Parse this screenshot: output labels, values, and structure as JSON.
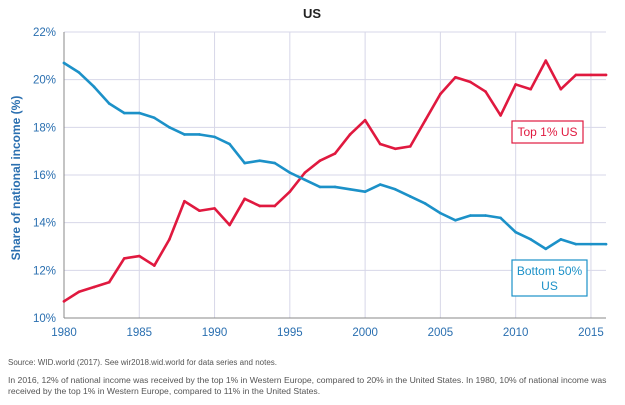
{
  "chart_data": {
    "type": "line",
    "title": "US",
    "ylabel": "Share of national income (%)",
    "xlabel": "",
    "xlim": [
      1980,
      2016
    ],
    "ylim": [
      10,
      22
    ],
    "xticks": [
      1980,
      1985,
      1990,
      1995,
      2000,
      2005,
      2010,
      2015
    ],
    "yticks": [
      10,
      12,
      14,
      16,
      18,
      20,
      22
    ],
    "ytick_labels": [
      "10%",
      "12%",
      "14%",
      "16%",
      "18%",
      "20%",
      "22%"
    ],
    "grid": true,
    "x": [
      1980,
      1981,
      1982,
      1983,
      1984,
      1985,
      1986,
      1987,
      1988,
      1989,
      1990,
      1991,
      1992,
      1993,
      1994,
      1995,
      1996,
      1997,
      1998,
      1999,
      2000,
      2001,
      2002,
      2003,
      2004,
      2005,
      2006,
      2007,
      2008,
      2009,
      2010,
      2011,
      2012,
      2013,
      2014,
      2015,
      2016
    ],
    "series": [
      {
        "name": "Top 1% US",
        "color": "#e0193f",
        "values": [
          10.7,
          11.1,
          11.3,
          11.5,
          12.5,
          12.6,
          12.2,
          13.3,
          14.9,
          14.5,
          14.6,
          13.9,
          15.0,
          14.7,
          14.7,
          15.3,
          16.1,
          16.6,
          16.9,
          17.7,
          18.3,
          17.3,
          17.1,
          17.2,
          18.3,
          19.4,
          20.1,
          19.9,
          19.5,
          18.5,
          19.8,
          19.6,
          20.8,
          19.6,
          20.2,
          20.2,
          20.2
        ]
      },
      {
        "name": "Bottom 50% US",
        "color": "#1c91c8",
        "values": [
          20.7,
          20.3,
          19.7,
          19.0,
          18.6,
          18.6,
          18.4,
          18.0,
          17.7,
          17.7,
          17.6,
          17.3,
          16.5,
          16.6,
          16.5,
          16.1,
          15.8,
          15.5,
          15.5,
          15.4,
          15.3,
          15.6,
          15.4,
          15.1,
          14.8,
          14.4,
          14.1,
          14.3,
          14.3,
          14.2,
          13.6,
          13.3,
          12.9,
          13.3,
          13.1,
          13.1,
          13.1
        ]
      }
    ],
    "annotations": [
      {
        "series": "Top 1% US",
        "label": "Top 1% US",
        "placement": "right, below line near 2009-2016"
      },
      {
        "series": "Bottom 50% US",
        "label_lines": [
          "Bottom 50%",
          "US"
        ],
        "placement": "bottom-right near 2010-2016"
      }
    ]
  },
  "notes": {
    "source": "Source:  WID.world (2017). See wir2018.wid.world for data series and notes.",
    "caption": "In 2016, 12% of national income was received by the top 1% in Western Europe, compared to 20% in the United States. In 1980, 10% of national income was received by the top 1% in Western Europe, compared to 11% in the United States."
  },
  "colors": {
    "axis_text": "#2a6fb0",
    "grid": "#d7d7e8",
    "axis": "#888888"
  }
}
